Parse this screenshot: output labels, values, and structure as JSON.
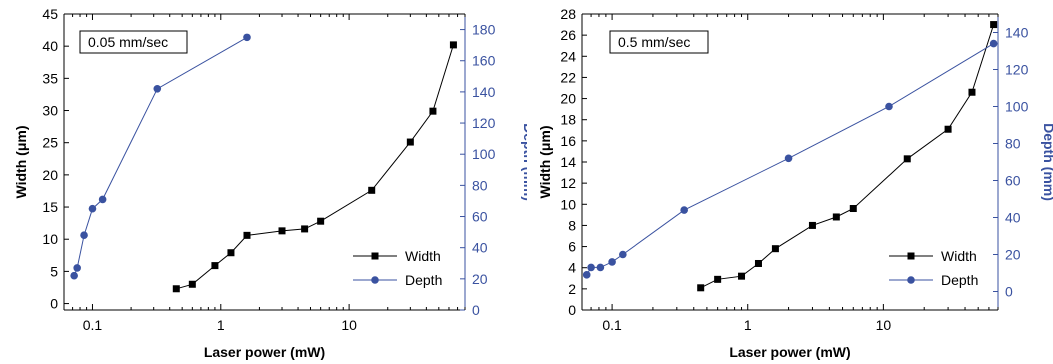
{
  "chart_data": [
    {
      "type": "line",
      "annotation": "0.05 mm/sec",
      "xlabel": "Laser power (mW)",
      "ylabel": "Width (μm)",
      "y2label": "Depth (mm)",
      "xscale": "log",
      "xlim": [
        0.06,
        80
      ],
      "ylim": [
        -1,
        45
      ],
      "y2lim": [
        0,
        190
      ],
      "xticks": [
        0.1,
        1,
        10
      ],
      "xtick_labels": [
        "0.1",
        "1",
        "10"
      ],
      "yticks": [
        0,
        5,
        10,
        15,
        20,
        25,
        30,
        35,
        40,
        45
      ],
      "y2ticks": [
        0,
        20,
        40,
        60,
        80,
        100,
        120,
        140,
        160,
        180
      ],
      "legend_position": "bottom-right",
      "grid": false,
      "series": [
        {
          "name": "Width",
          "axis": "left",
          "color": "#000000",
          "marker": "square",
          "x": [
            0.45,
            0.6,
            0.9,
            1.2,
            1.6,
            3,
            4.5,
            6,
            15,
            30,
            45,
            65
          ],
          "y": [
            2.3,
            3,
            5.9,
            7.9,
            10.6,
            11.3,
            11.6,
            12.8,
            17.6,
            25.1,
            29.9,
            40.2
          ]
        },
        {
          "name": "Depth",
          "axis": "right",
          "color": "#3a52a0",
          "marker": "circle",
          "x": [
            0.072,
            0.076,
            0.086,
            0.1,
            0.12,
            0.32,
            1.6
          ],
          "y": [
            22,
            27,
            48,
            65,
            71,
            142,
            175
          ]
        }
      ]
    },
    {
      "type": "line",
      "annotation": "0.5 mm/sec",
      "xlabel": "Laser power (mW)",
      "ylabel": "Width (μm)",
      "y2label": "Depth (mm)",
      "xscale": "log",
      "xlim": [
        0.06,
        70
      ],
      "ylim": [
        0,
        28
      ],
      "y2lim": [
        -10,
        150
      ],
      "xticks": [
        0.1,
        1,
        10
      ],
      "xtick_labels": [
        "0.1",
        "1",
        "10"
      ],
      "yticks": [
        0,
        2,
        4,
        6,
        8,
        10,
        12,
        14,
        16,
        18,
        20,
        22,
        24,
        26,
        28
      ],
      "y2ticks": [
        0,
        20,
        40,
        60,
        80,
        100,
        120,
        140
      ],
      "legend_position": "bottom-right",
      "grid": false,
      "series": [
        {
          "name": "Width",
          "axis": "left",
          "color": "#000000",
          "marker": "square",
          "x": [
            0.45,
            0.6,
            0.9,
            1.2,
            1.6,
            3,
            4.5,
            6,
            15,
            30,
            45,
            65
          ],
          "y": [
            2.1,
            2.9,
            3.2,
            4.4,
            5.8,
            8,
            8.8,
            9.6,
            14.3,
            17.1,
            20.6,
            27
          ]
        },
        {
          "name": "Depth",
          "axis": "right",
          "color": "#3a52a0",
          "marker": "circle",
          "x": [
            0.065,
            0.07,
            0.082,
            0.1,
            0.12,
            0.34,
            2,
            11,
            65
          ],
          "y": [
            9,
            13,
            13,
            16,
            20,
            44,
            72,
            100,
            134
          ]
        }
      ]
    }
  ]
}
